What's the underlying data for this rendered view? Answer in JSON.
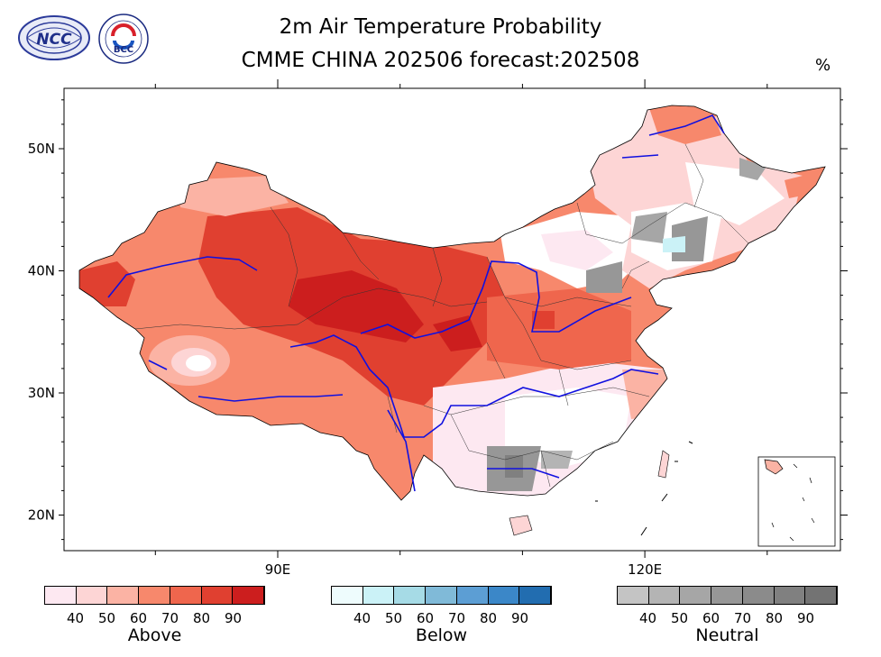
{
  "title": {
    "line1": "2m Air Temperature Probability",
    "line2": "CMME CHINA 202506 forecast:202508",
    "unit": "%"
  },
  "logos": [
    {
      "name": "ncc-logo",
      "text": "NCC"
    },
    {
      "name": "bcc-logo",
      "text": "BCC"
    }
  ],
  "map": {
    "lat_labels": [
      "50N",
      "40N",
      "30N",
      "20N"
    ],
    "lon_labels": [
      "90E",
      "120E"
    ],
    "lat_values": [
      50,
      40,
      30,
      20
    ],
    "lon_values": [
      90,
      120
    ]
  },
  "legends": [
    {
      "title": "Above",
      "ticks": [
        "40",
        "50",
        "60",
        "70",
        "80",
        "90"
      ],
      "colors": [
        "#fde8f1",
        "#fdd5d5",
        "#fbb3a4",
        "#f7886c",
        "#ef664d",
        "#e04030",
        "#cc1e1e"
      ]
    },
    {
      "title": "Below",
      "ticks": [
        "40",
        "50",
        "60",
        "70",
        "80",
        "90"
      ],
      "colors": [
        "#eefcfd",
        "#cbf2f7",
        "#a6dbe6",
        "#80bad8",
        "#5c9ed4",
        "#3b87c8",
        "#226db0"
      ]
    },
    {
      "title": "Neutral",
      "ticks": [
        "40",
        "50",
        "60",
        "70",
        "80",
        "90"
      ],
      "colors": [
        "#c4c4c4",
        "#b4b4b4",
        "#a6a6a6",
        "#979797",
        "#8b8b8b",
        "#808080",
        "#737373"
      ]
    }
  ]
}
